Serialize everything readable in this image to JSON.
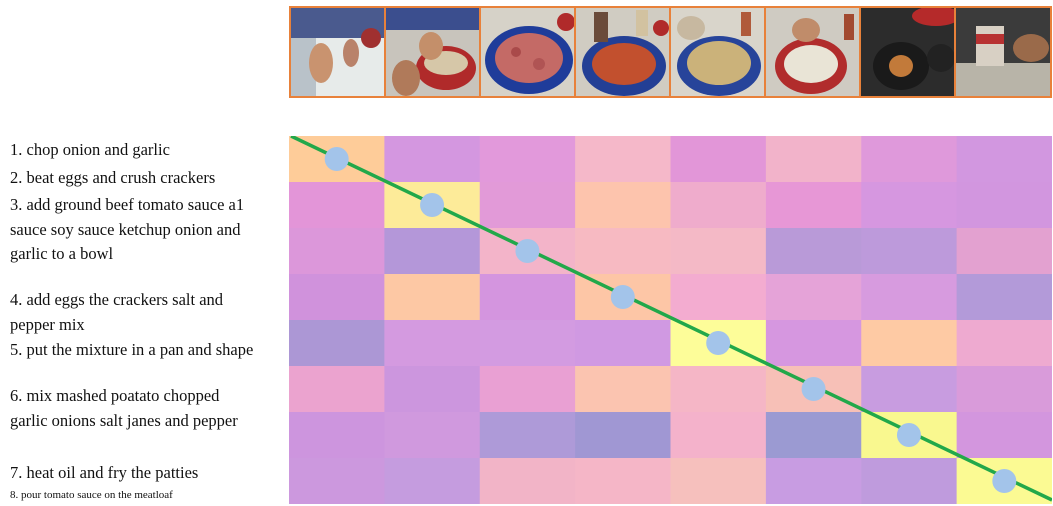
{
  "steps": [
    "1. chop onion and garlic",
    "2. beat eggs and crush crackers",
    "3. add ground beef tomato sauce a1 sauce soy sauce ketchup onion and garlic to a bowl",
    "4. add eggs the crackers salt and pepper mix",
    "5. put the mixture in a pan and shape",
    "6. mix mashed poatato chopped garlic onions salt janes and pepper",
    "7. heat oil and fry the patties",
    "8. pour tomato sauce on the meatloaf"
  ],
  "frames": [
    {
      "icon": "hands-on-cutting-board"
    },
    {
      "icon": "hand-cracking-egg-into-bowl"
    },
    {
      "icon": "ground-beef-in-blue-bowl"
    },
    {
      "icon": "pouring-sauce-on-beef"
    },
    {
      "icon": "mixture-in-bowl"
    },
    {
      "icon": "mixing-bowl-white"
    },
    {
      "icon": "frying-pan-on-stove"
    },
    {
      "icon": "pouring-can-sauce"
    }
  ],
  "colors": {
    "frame_border": "#e8813a",
    "alignment_line": "#22a84a",
    "marker": "#a3c4ea"
  },
  "matrix": {
    "cells": [
      [
        "#fecc99",
        "#d497e0",
        "#e299db",
        "#f5b8c9",
        "#e296d8",
        "#f2b3ca",
        "#df99db",
        "#d297e0"
      ],
      [
        "#e395d8",
        "#fdeb99",
        "#e29ad8",
        "#fdc4ad",
        "#efaccc",
        "#e797d6",
        "#d697e0",
        "#d296df"
      ],
      [
        "#dc97da",
        "#b497d9",
        "#f3b4c9",
        "#f7bac2",
        "#f4b9c6",
        "#b99ad8",
        "#bd9adb",
        "#e3a1d0"
      ],
      [
        "#d092dc",
        "#fdc8a4",
        "#d495df",
        "#fdc6a6",
        "#f3acd0",
        "#e5a3d8",
        "#d79bdf",
        "#b39ad9"
      ],
      [
        "#ac97d5",
        "#d49ae0",
        "#d39be1",
        "#d099e2",
        "#fdfd99",
        "#d697e0",
        "#fecaa4",
        "#eeaad0"
      ],
      [
        "#eba3cf",
        "#cc96de",
        "#e9a0d3",
        "#fbc4b0",
        "#f5b6c6",
        "#f7c0b7",
        "#c89ce0",
        "#d99bda"
      ],
      [
        "#cd95de",
        "#d099de",
        "#ae9ad8",
        "#a097d3",
        "#f4b2cb",
        "#9b9ad2",
        "#f9f88f",
        "#d396de"
      ],
      [
        "#cc98de",
        "#c59cdf",
        "#f2b4c7",
        "#f5b6c7",
        "#f6c0bd",
        "#c89ce2",
        "#bf9bdd",
        "#fbfa93"
      ]
    ],
    "alignment": [
      0,
      1,
      2,
      3,
      4,
      5,
      6,
      7
    ]
  }
}
